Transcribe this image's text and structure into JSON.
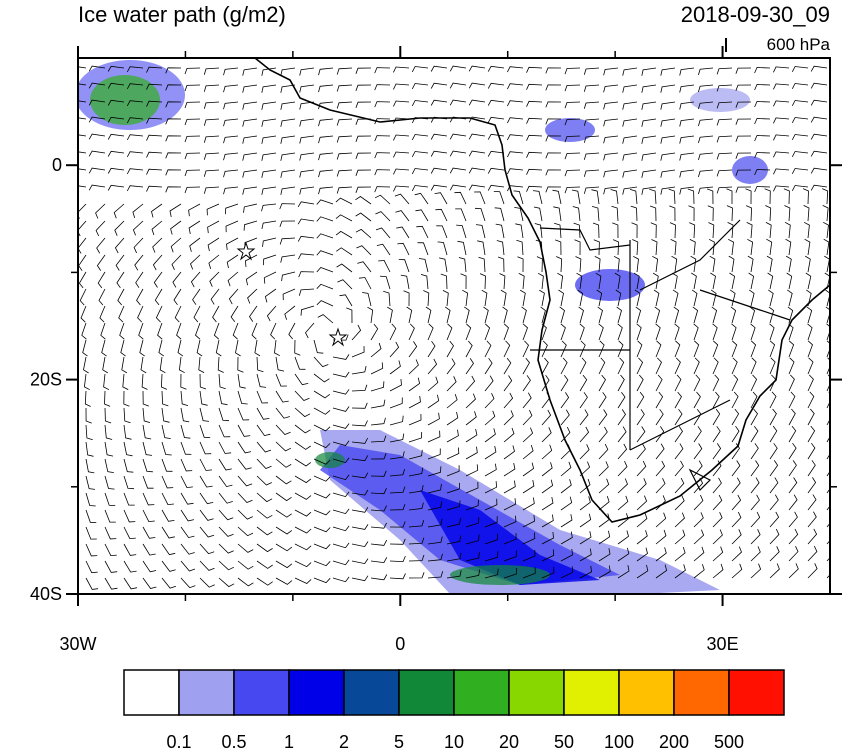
{
  "title": "Ice water path (g/m2)",
  "valid_time": "2018-09-30_09",
  "level": "600 hPa",
  "map": {
    "xlim": [
      -30,
      40
    ],
    "ylim": [
      -40,
      10
    ],
    "xticks": [
      {
        "value": -30,
        "label": "30W"
      },
      0,
      {
        "value": 30,
        "label": "30E"
      }
    ],
    "yticks": [
      0,
      {
        "value": -20,
        "label": "20S"
      },
      {
        "value": -40,
        "label": "40S"
      }
    ]
  },
  "colorbar": {
    "labels": [
      "0.1",
      "0.5",
      "1",
      "2",
      "5",
      "10",
      "20",
      "50",
      "100",
      "200",
      "500"
    ],
    "colors": [
      "#ffffff",
      "#a0a0f0",
      "#4848f0",
      "#0000e8",
      "#084898",
      "#108838",
      "#30b020",
      "#88d800",
      "#e0f000",
      "#ffc000",
      "#ff6800",
      "#ff1000"
    ]
  }
}
